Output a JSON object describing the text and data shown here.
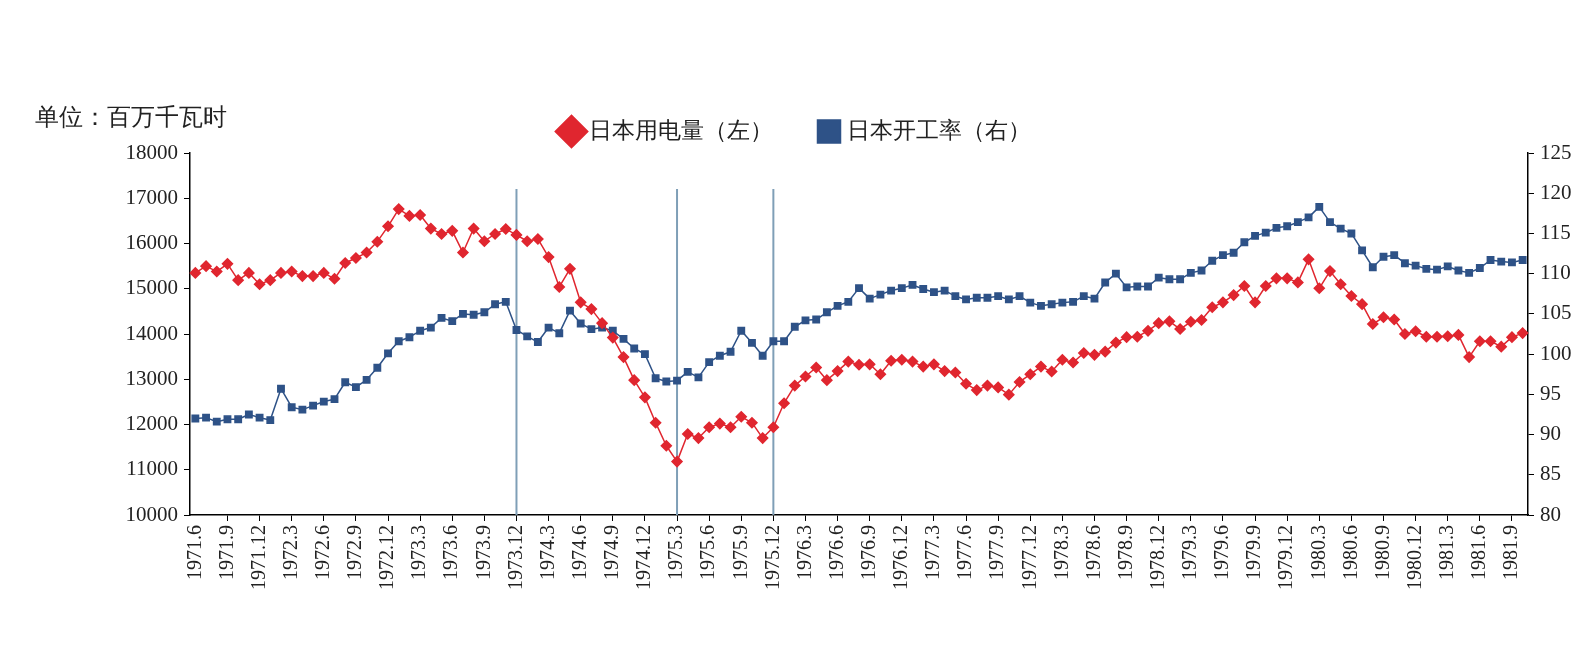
{
  "chart_data": {
    "type": "line",
    "ylabel": "单位：百万千瓦时",
    "legend": "top",
    "categories": [
      "1971.6",
      null,
      null,
      "1971.9",
      null,
      null,
      "1971.12",
      null,
      null,
      "1972.3",
      null,
      null,
      "1972.6",
      null,
      null,
      "1972.9",
      null,
      null,
      "1972.12",
      null,
      null,
      "1973.3",
      null,
      null,
      "1973.6",
      null,
      null,
      "1973.9",
      null,
      null,
      "1973.12",
      null,
      null,
      "1974.3",
      null,
      null,
      "1974.6",
      null,
      null,
      "1974.9",
      null,
      null,
      "1974.12",
      null,
      null,
      "1975.3",
      null,
      null,
      "1975.6",
      null,
      null,
      "1975.9",
      null,
      null,
      "1975.12",
      null,
      null,
      "1976.3",
      null,
      null,
      "1976.6",
      null,
      null,
      "1976.9",
      null,
      null,
      "1976.12",
      null,
      null,
      "1977.3",
      null,
      null,
      "1977.6",
      null,
      null,
      "1977.9",
      null,
      null,
      "1977.12",
      null,
      null,
      "1978.3",
      null,
      null,
      "1978.6",
      null,
      null,
      "1978.9",
      null,
      null,
      "1978.12",
      null,
      null,
      "1979.3",
      null,
      null,
      "1979.6",
      null,
      null,
      "1979.9",
      null,
      null,
      "1979.12",
      null,
      null,
      "1980.3",
      null,
      null,
      "1980.6",
      null,
      null,
      "1980.9",
      null,
      null,
      "1980.12",
      null,
      null,
      "1981.3",
      null,
      null,
      "1981.6",
      null,
      null,
      "1981.9",
      null
    ],
    "ylim": [
      10000,
      18000
    ],
    "yticks": [
      10000,
      11000,
      12000,
      13000,
      14000,
      15000,
      16000,
      17000,
      18000
    ],
    "y2lim": [
      80,
      125
    ],
    "y2ticks": [
      80,
      85,
      90,
      95,
      100,
      105,
      110,
      115,
      120,
      125
    ],
    "ref_lines": [
      {
        "axis": "x",
        "value": "1973.12",
        "color": "#7f9fb7"
      },
      {
        "axis": "x",
        "value": "1975.3",
        "color": "#7f9fb7"
      },
      {
        "axis": "x",
        "value": "1975.12",
        "color": "#7f9fb7"
      }
    ],
    "series": [
      {
        "name": "日本用电量（左）",
        "color": "#e0262f",
        "marker": "diamond",
        "values": [
          15350,
          15500,
          15380,
          15550,
          15190,
          15350,
          15100,
          15190,
          15350,
          15380,
          15280,
          15280,
          15350,
          15220,
          15570,
          15680,
          15800,
          16040,
          16380,
          16760,
          16610,
          16630,
          16330,
          16210,
          16280,
          15800,
          16330,
          16050,
          16210,
          16320,
          16190,
          16050,
          16100,
          15700,
          15040,
          15440,
          14700,
          14550,
          14240,
          13920,
          13490,
          12980,
          12600,
          12040,
          11530,
          11180,
          11790,
          11700,
          11940,
          12020,
          11940,
          12170,
          12040,
          11700,
          11940,
          12470,
          12860,
          13060,
          13260,
          12980,
          13180,
          13390,
          13320,
          13330,
          13110,
          13410,
          13430,
          13390,
          13280,
          13330,
          13180,
          13150,
          12900,
          12760,
          12860,
          12820,
          12660,
          12940,
          13110,
          13280,
          13170,
          13430,
          13370,
          13580,
          13540,
          13610,
          13810,
          13930,
          13940,
          14070,
          14240,
          14280,
          14110,
          14270,
          14310,
          14590,
          14700,
          14860,
          15060,
          14700,
          15060,
          15230,
          15230,
          15140,
          15650,
          15010,
          15390,
          15100,
          14840,
          14660,
          14220,
          14370,
          14320,
          14000,
          14060,
          13940,
          13940,
          13950,
          13980,
          13490,
          13840,
          13840,
          13720,
          13930,
          14020
        ]
      },
      {
        "name": "日本开工率（右）",
        "color": "#2e5287",
        "marker": "square",
        "axis": "y2",
        "values": [
          92.0,
          92.1,
          91.6,
          91.9,
          91.9,
          92.5,
          92.1,
          91.8,
          95.7,
          93.4,
          93.1,
          93.6,
          94.1,
          94.4,
          96.5,
          95.9,
          96.8,
          98.3,
          100.1,
          101.6,
          102.1,
          102.9,
          103.3,
          104.5,
          104.1,
          105.0,
          104.9,
          105.2,
          106.2,
          106.5,
          103.0,
          102.2,
          101.5,
          103.3,
          102.6,
          105.4,
          103.8,
          103.1,
          103.3,
          102.9,
          101.9,
          100.7,
          100.0,
          97.0,
          96.6,
          96.7,
          97.8,
          97.1,
          99.0,
          99.8,
          100.3,
          102.9,
          101.4,
          99.8,
          101.6,
          101.6,
          103.4,
          104.2,
          104.3,
          105.2,
          106.0,
          106.5,
          108.2,
          106.9,
          107.4,
          107.9,
          108.2,
          108.6,
          108.1,
          107.7,
          107.9,
          107.2,
          106.8,
          107.0,
          107.0,
          107.2,
          106.8,
          107.2,
          106.4,
          106.0,
          106.2,
          106.4,
          106.5,
          107.2,
          106.9,
          108.9,
          110.0,
          108.3,
          108.4,
          108.4,
          109.5,
          109.3,
          109.3,
          110.1,
          110.4,
          111.6,
          112.3,
          112.6,
          113.9,
          114.7,
          115.1,
          115.7,
          115.9,
          116.4,
          117.0,
          118.3,
          116.4,
          115.6,
          115.0,
          112.9,
          110.8,
          112.1,
          112.3,
          111.3,
          111.0,
          110.6,
          110.5,
          110.9,
          110.4,
          110.1,
          110.7,
          111.7,
          111.5,
          111.4,
          111.7
        ]
      }
    ]
  }
}
